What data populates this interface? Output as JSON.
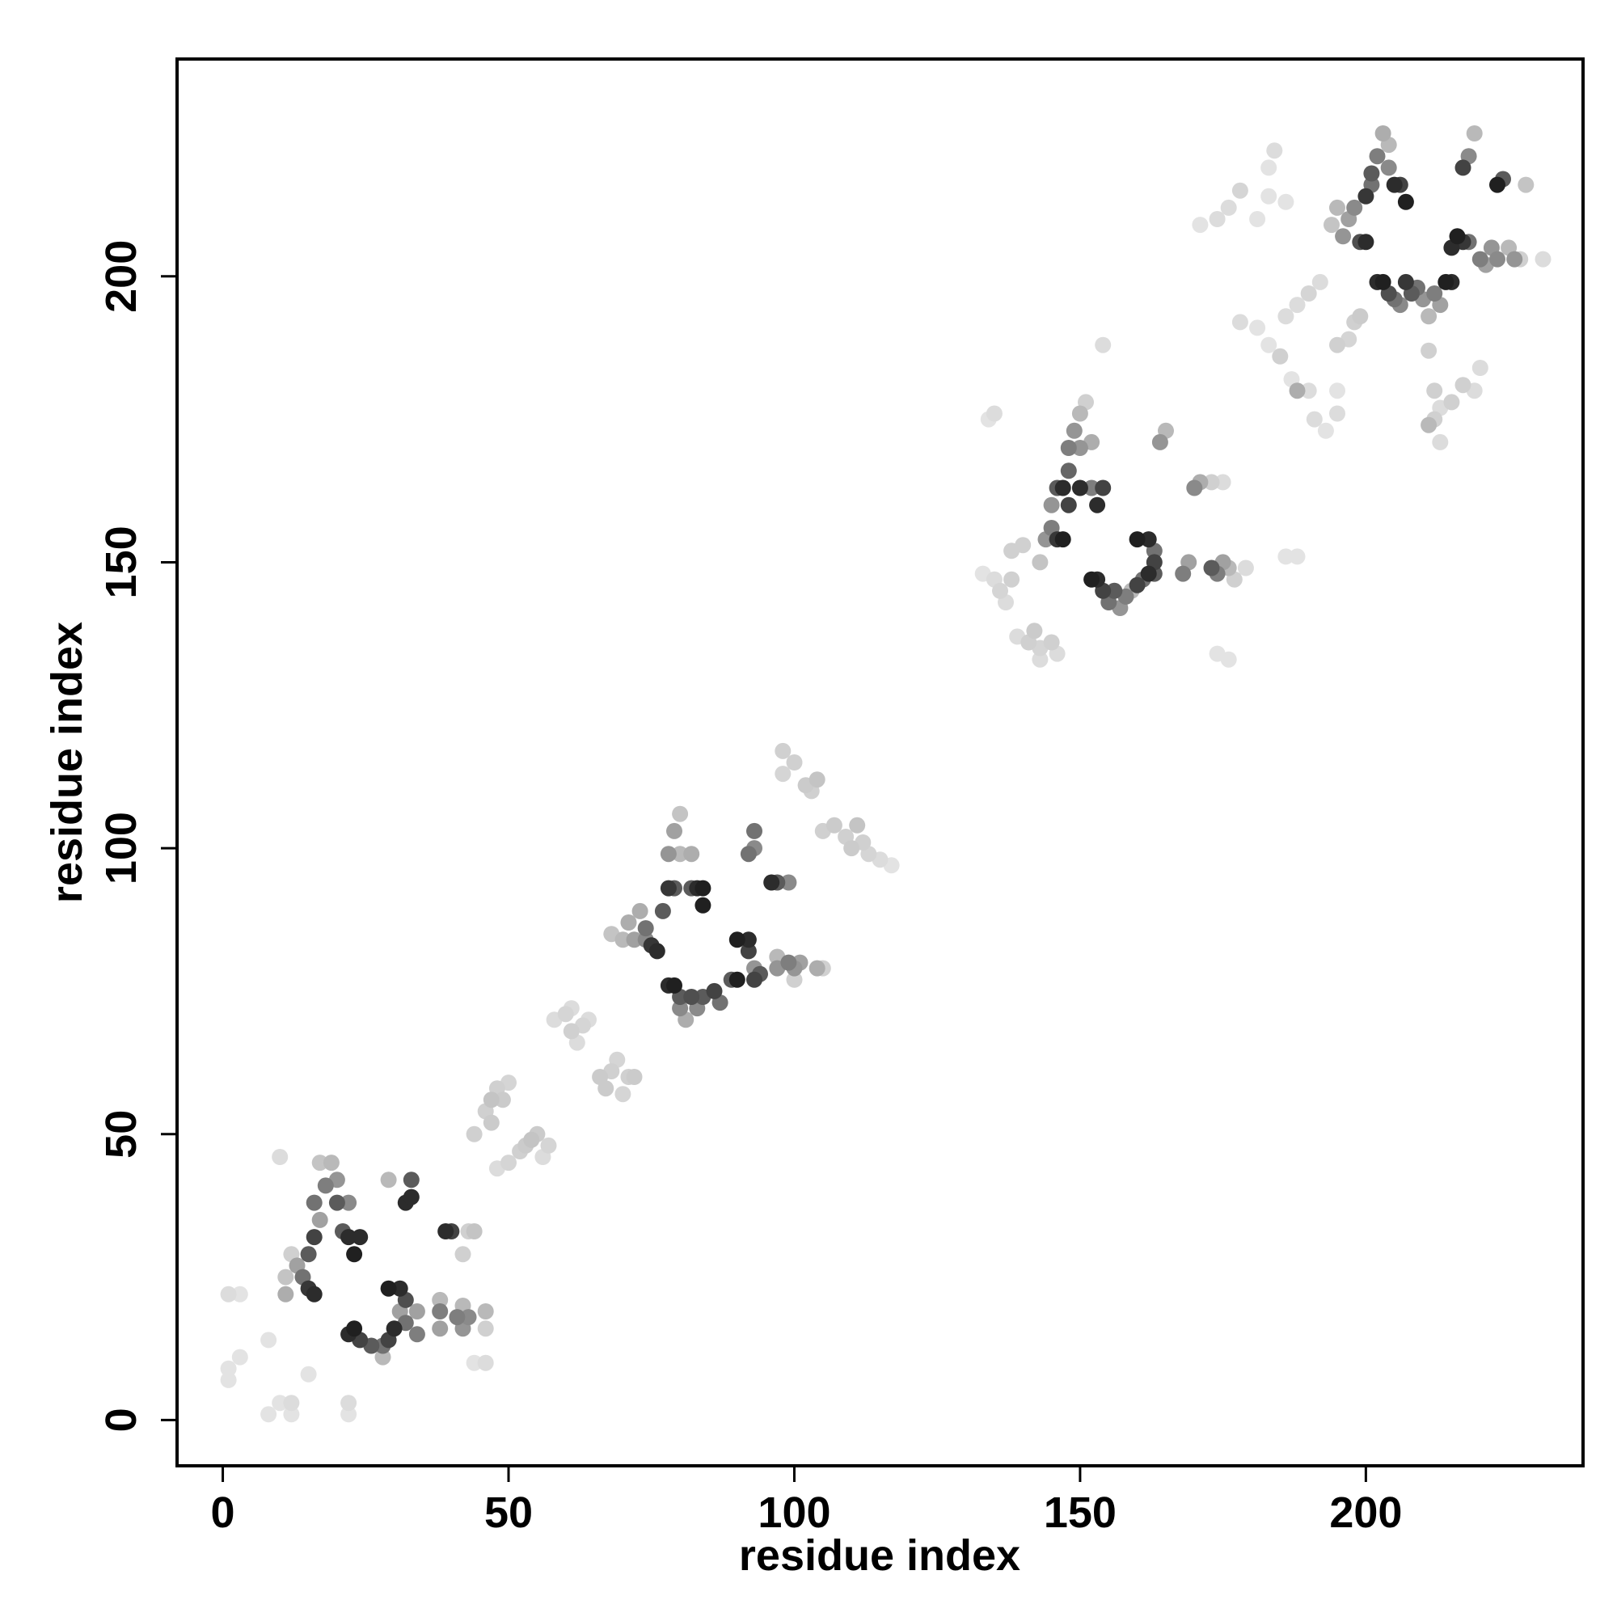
{
  "chart_data": {
    "type": "scatter",
    "title": "",
    "xlabel": "residue index",
    "ylabel": "residue index",
    "xlim": [
      -8,
      238
    ],
    "ylim": [
      -8,
      238
    ],
    "x_ticks": [
      0,
      50,
      100,
      150,
      200
    ],
    "y_ticks": [
      0,
      50,
      100,
      150,
      200
    ],
    "grid": false,
    "legend": "none",
    "marker_color": "#000000",
    "shade_scale": {
      "min": 0.1,
      "max": 1.0,
      "meaning": "darker = stronger"
    },
    "points": [
      [
        1,
        22,
        0.15
      ],
      [
        3,
        22,
        0.12
      ],
      [
        1,
        9,
        0.12
      ],
      [
        3,
        11,
        0.12
      ],
      [
        1,
        7,
        0.12
      ],
      [
        8,
        1,
        0.12
      ],
      [
        10,
        3,
        0.12
      ],
      [
        12,
        1,
        0.12
      ],
      [
        12,
        3,
        0.15
      ],
      [
        8,
        14,
        0.12
      ],
      [
        10,
        46,
        0.15
      ],
      [
        15,
        8,
        0.12
      ],
      [
        22,
        1,
        0.12
      ],
      [
        22,
        3,
        0.15
      ],
      [
        11,
        22,
        0.35
      ],
      [
        11,
        25,
        0.25
      ],
      [
        12,
        29,
        0.2
      ],
      [
        13,
        27,
        0.4
      ],
      [
        14,
        25,
        0.6
      ],
      [
        15,
        23,
        0.85
      ],
      [
        16,
        22,
        0.9
      ],
      [
        15,
        29,
        0.7
      ],
      [
        16,
        32,
        0.8
      ],
      [
        17,
        35,
        0.4
      ],
      [
        16,
        38,
        0.6
      ],
      [
        18,
        41,
        0.55
      ],
      [
        19,
        45,
        0.3
      ],
      [
        17,
        45,
        0.25
      ],
      [
        20,
        42,
        0.45
      ],
      [
        20,
        38,
        0.7
      ],
      [
        22,
        38,
        0.5
      ],
      [
        21,
        33,
        0.7
      ],
      [
        22,
        32,
        0.9
      ],
      [
        23,
        29,
        0.95
      ],
      [
        24,
        32,
        0.9
      ],
      [
        22,
        15,
        0.9
      ],
      [
        23,
        16,
        0.95
      ],
      [
        24,
        14,
        0.8
      ],
      [
        26,
        13,
        0.7
      ],
      [
        28,
        13,
        0.6
      ],
      [
        28,
        11,
        0.3
      ],
      [
        29,
        14,
        0.8
      ],
      [
        30,
        16,
        0.9
      ],
      [
        29,
        23,
        0.95
      ],
      [
        31,
        23,
        0.9
      ],
      [
        32,
        21,
        0.75
      ],
      [
        32,
        17,
        0.6
      ],
      [
        31,
        19,
        0.4
      ],
      [
        32,
        38,
        0.9
      ],
      [
        33,
        39,
        0.9
      ],
      [
        33,
        42,
        0.7
      ],
      [
        29,
        42,
        0.3
      ],
      [
        34,
        15,
        0.55
      ],
      [
        34,
        19,
        0.4
      ],
      [
        38,
        16,
        0.4
      ],
      [
        38,
        19,
        0.55
      ],
      [
        38,
        21,
        0.3
      ],
      [
        39,
        33,
        0.9
      ],
      [
        40,
        33,
        0.8
      ],
      [
        41,
        18,
        0.55
      ],
      [
        42,
        16,
        0.45
      ],
      [
        43,
        18,
        0.5
      ],
      [
        42,
        20,
        0.3
      ],
      [
        42,
        29,
        0.2
      ],
      [
        43,
        33,
        0.2
      ],
      [
        46,
        16,
        0.2
      ],
      [
        46,
        19,
        0.3
      ],
      [
        46,
        10,
        0.15
      ],
      [
        44,
        10,
        0.12
      ],
      [
        44,
        33,
        0.25
      ],
      [
        44,
        50,
        0.2
      ],
      [
        46,
        54,
        0.2
      ],
      [
        47,
        56,
        0.25
      ],
      [
        48,
        58,
        0.2
      ],
      [
        47,
        52,
        0.22
      ],
      [
        49,
        56,
        0.22
      ],
      [
        50,
        59,
        0.18
      ],
      [
        48,
        44,
        0.15
      ],
      [
        50,
        45,
        0.18
      ],
      [
        52,
        47,
        0.2
      ],
      [
        53,
        48,
        0.22
      ],
      [
        54,
        49,
        0.25
      ],
      [
        55,
        50,
        0.22
      ],
      [
        57,
        48,
        0.18
      ],
      [
        56,
        46,
        0.15
      ],
      [
        58,
        70,
        0.15
      ],
      [
        60,
        71,
        0.18
      ],
      [
        61,
        68,
        0.2
      ],
      [
        62,
        66,
        0.15
      ],
      [
        63,
        69,
        0.18
      ],
      [
        64,
        70,
        0.15
      ],
      [
        61,
        72,
        0.15
      ],
      [
        66,
        60,
        0.22
      ],
      [
        67,
        58,
        0.22
      ],
      [
        68,
        61,
        0.2
      ],
      [
        69,
        63,
        0.18
      ],
      [
        71,
        60,
        0.2
      ],
      [
        72,
        60,
        0.22
      ],
      [
        70,
        57,
        0.18
      ],
      [
        68,
        85,
        0.25
      ],
      [
        70,
        84,
        0.3
      ],
      [
        71,
        87,
        0.35
      ],
      [
        72,
        84,
        0.4
      ],
      [
        73,
        89,
        0.35
      ],
      [
        74,
        84,
        0.5
      ],
      [
        74,
        86,
        0.6
      ],
      [
        75,
        83,
        0.85
      ],
      [
        76,
        82,
        0.9
      ],
      [
        77,
        89,
        0.7
      ],
      [
        78,
        93,
        0.85
      ],
      [
        79,
        93,
        0.7
      ],
      [
        78,
        99,
        0.45
      ],
      [
        79,
        103,
        0.4
      ],
      [
        80,
        106,
        0.25
      ],
      [
        80,
        99,
        0.3
      ],
      [
        82,
        99,
        0.35
      ],
      [
        82,
        93,
        0.7
      ],
      [
        83,
        93,
        0.9
      ],
      [
        84,
        90,
        0.95
      ],
      [
        84,
        93,
        0.95
      ],
      [
        78,
        76,
        0.9
      ],
      [
        79,
        76,
        0.95
      ],
      [
        80,
        74,
        0.7
      ],
      [
        80,
        72,
        0.5
      ],
      [
        81,
        70,
        0.35
      ],
      [
        82,
        74,
        0.75
      ],
      [
        83,
        72,
        0.5
      ],
      [
        84,
        74,
        0.7
      ],
      [
        86,
        75,
        0.8
      ],
      [
        87,
        73,
        0.6
      ],
      [
        89,
        77,
        0.7
      ],
      [
        90,
        77,
        0.95
      ],
      [
        90,
        84,
        0.95
      ],
      [
        92,
        84,
        0.9
      ],
      [
        92,
        82,
        0.8
      ],
      [
        93,
        77,
        0.8
      ],
      [
        94,
        78,
        0.7
      ],
      [
        93,
        79,
        0.45
      ],
      [
        92,
        99,
        0.6
      ],
      [
        93,
        103,
        0.6
      ],
      [
        93,
        100,
        0.5
      ],
      [
        96,
        94,
        0.9
      ],
      [
        97,
        94,
        0.7
      ],
      [
        99,
        94,
        0.5
      ],
      [
        97,
        81,
        0.3
      ],
      [
        97,
        79,
        0.45
      ],
      [
        99,
        80,
        0.55
      ],
      [
        100,
        79,
        0.45
      ],
      [
        100,
        77,
        0.2
      ],
      [
        101,
        80,
        0.4
      ],
      [
        104,
        79,
        0.35
      ],
      [
        105,
        79,
        0.2
      ],
      [
        98,
        117,
        0.2
      ],
      [
        98,
        113,
        0.18
      ],
      [
        100,
        115,
        0.2
      ],
      [
        102,
        111,
        0.22
      ],
      [
        103,
        110,
        0.2
      ],
      [
        104,
        112,
        0.25
      ],
      [
        105,
        103,
        0.2
      ],
      [
        107,
        104,
        0.22
      ],
      [
        109,
        102,
        0.2
      ],
      [
        110,
        100,
        0.22
      ],
      [
        111,
        104,
        0.25
      ],
      [
        112,
        101,
        0.2
      ],
      [
        113,
        99,
        0.18
      ],
      [
        115,
        98,
        0.15
      ],
      [
        117,
        97,
        0.12
      ],
      [
        133,
        148,
        0.12
      ],
      [
        134,
        175,
        0.12
      ],
      [
        135,
        176,
        0.15
      ],
      [
        135,
        147,
        0.15
      ],
      [
        136,
        145,
        0.18
      ],
      [
        137,
        143,
        0.15
      ],
      [
        138,
        147,
        0.2
      ],
      [
        138,
        152,
        0.2
      ],
      [
        140,
        153,
        0.2
      ],
      [
        139,
        137,
        0.15
      ],
      [
        141,
        136,
        0.2
      ],
      [
        142,
        138,
        0.22
      ],
      [
        143,
        135,
        0.18
      ],
      [
        143,
        133,
        0.15
      ],
      [
        145,
        136,
        0.2
      ],
      [
        146,
        134,
        0.15
      ],
      [
        143,
        150,
        0.25
      ],
      [
        144,
        154,
        0.45
      ],
      [
        145,
        156,
        0.55
      ],
      [
        146,
        154,
        0.85
      ],
      [
        147,
        154,
        0.95
      ],
      [
        145,
        160,
        0.45
      ],
      [
        146,
        163,
        0.7
      ],
      [
        147,
        163,
        0.9
      ],
      [
        148,
        166,
        0.65
      ],
      [
        148,
        170,
        0.55
      ],
      [
        149,
        173,
        0.45
      ],
      [
        150,
        176,
        0.3
      ],
      [
        151,
        178,
        0.2
      ],
      [
        150,
        170,
        0.45
      ],
      [
        152,
        171,
        0.35
      ],
      [
        148,
        160,
        0.8
      ],
      [
        150,
        163,
        0.9
      ],
      [
        152,
        163,
        0.55
      ],
      [
        153,
        160,
        0.9
      ],
      [
        154,
        163,
        0.8
      ],
      [
        152,
        147,
        0.95
      ],
      [
        153,
        147,
        0.9
      ],
      [
        154,
        145,
        0.8
      ],
      [
        155,
        143,
        0.6
      ],
      [
        156,
        145,
        0.7
      ],
      [
        157,
        142,
        0.45
      ],
      [
        158,
        144,
        0.55
      ],
      [
        159,
        145,
        0.3
      ],
      [
        160,
        146,
        0.8
      ],
      [
        161,
        147,
        0.6
      ],
      [
        162,
        148,
        0.9
      ],
      [
        163,
        148,
        0.7
      ],
      [
        160,
        154,
        0.95
      ],
      [
        162,
        154,
        0.9
      ],
      [
        163,
        152,
        0.6
      ],
      [
        163,
        150,
        0.8
      ],
      [
        164,
        171,
        0.45
      ],
      [
        165,
        173,
        0.3
      ],
      [
        168,
        148,
        0.55
      ],
      [
        169,
        150,
        0.4
      ],
      [
        170,
        163,
        0.5
      ],
      [
        171,
        164,
        0.35
      ],
      [
        173,
        149,
        0.7
      ],
      [
        174,
        148,
        0.55
      ],
      [
        175,
        150,
        0.4
      ],
      [
        176,
        149,
        0.3
      ],
      [
        177,
        147,
        0.2
      ],
      [
        179,
        149,
        0.15
      ],
      [
        173,
        164,
        0.2
      ],
      [
        175,
        164,
        0.15
      ],
      [
        174,
        134,
        0.12
      ],
      [
        176,
        133,
        0.12
      ],
      [
        186,
        151,
        0.12
      ],
      [
        188,
        151,
        0.12
      ],
      [
        154,
        188,
        0.15
      ],
      [
        171,
        209,
        0.12
      ],
      [
        174,
        210,
        0.15
      ],
      [
        176,
        212,
        0.15
      ],
      [
        178,
        215,
        0.18
      ],
      [
        181,
        210,
        0.12
      ],
      [
        183,
        214,
        0.12
      ],
      [
        186,
        213,
        0.12
      ],
      [
        183,
        219,
        0.12
      ],
      [
        184,
        222,
        0.15
      ],
      [
        178,
        192,
        0.15
      ],
      [
        181,
        191,
        0.12
      ],
      [
        183,
        188,
        0.12
      ],
      [
        185,
        186,
        0.2
      ],
      [
        187,
        182,
        0.12
      ],
      [
        186,
        193,
        0.15
      ],
      [
        188,
        195,
        0.15
      ],
      [
        190,
        197,
        0.18
      ],
      [
        192,
        199,
        0.15
      ],
      [
        188,
        180,
        0.35
      ],
      [
        190,
        180,
        0.15
      ],
      [
        191,
        175,
        0.15
      ],
      [
        193,
        173,
        0.12
      ],
      [
        195,
        176,
        0.15
      ],
      [
        195,
        180,
        0.12
      ],
      [
        195,
        188,
        0.2
      ],
      [
        197,
        189,
        0.18
      ],
      [
        198,
        192,
        0.2
      ],
      [
        199,
        193,
        0.22
      ],
      [
        194,
        209,
        0.25
      ],
      [
        195,
        212,
        0.3
      ],
      [
        196,
        207,
        0.45
      ],
      [
        197,
        210,
        0.4
      ],
      [
        198,
        212,
        0.5
      ],
      [
        199,
        206,
        0.75
      ],
      [
        200,
        206,
        0.9
      ],
      [
        200,
        214,
        0.85
      ],
      [
        201,
        218,
        0.7
      ],
      [
        202,
        221,
        0.55
      ],
      [
        203,
        225,
        0.35
      ],
      [
        204,
        223,
        0.3
      ],
      [
        201,
        216,
        0.6
      ],
      [
        204,
        219,
        0.5
      ],
      [
        205,
        216,
        0.9
      ],
      [
        206,
        216,
        0.8
      ],
      [
        207,
        213,
        0.95
      ],
      [
        202,
        199,
        0.9
      ],
      [
        203,
        199,
        0.95
      ],
      [
        204,
        197,
        0.75
      ],
      [
        205,
        196,
        0.6
      ],
      [
        206,
        195,
        0.5
      ],
      [
        207,
        199,
        0.85
      ],
      [
        208,
        197,
        0.7
      ],
      [
        209,
        198,
        0.6
      ],
      [
        210,
        196,
        0.45
      ],
      [
        211,
        193,
        0.3
      ],
      [
        211,
        187,
        0.2
      ],
      [
        212,
        197,
        0.55
      ],
      [
        213,
        195,
        0.4
      ],
      [
        214,
        199,
        0.95
      ],
      [
        215,
        199,
        0.9
      ],
      [
        215,
        205,
        0.9
      ],
      [
        216,
        207,
        0.95
      ],
      [
        217,
        206,
        0.85
      ],
      [
        218,
        206,
        0.6
      ],
      [
        217,
        219,
        0.8
      ],
      [
        218,
        221,
        0.5
      ],
      [
        219,
        225,
        0.3
      ],
      [
        220,
        203,
        0.55
      ],
      [
        221,
        202,
        0.4
      ],
      [
        222,
        205,
        0.45
      ],
      [
        223,
        203,
        0.5
      ],
      [
        223,
        216,
        0.95
      ],
      [
        224,
        217,
        0.7
      ],
      [
        225,
        205,
        0.3
      ],
      [
        226,
        203,
        0.45
      ],
      [
        227,
        203,
        0.2
      ],
      [
        228,
        216,
        0.25
      ],
      [
        231,
        203,
        0.15
      ],
      [
        212,
        180,
        0.2
      ],
      [
        213,
        177,
        0.15
      ],
      [
        215,
        178,
        0.2
      ],
      [
        217,
        181,
        0.2
      ],
      [
        219,
        180,
        0.15
      ],
      [
        211,
        174,
        0.3
      ],
      [
        213,
        171,
        0.15
      ],
      [
        212,
        175,
        0.2
      ],
      [
        220,
        184,
        0.15
      ]
    ]
  }
}
